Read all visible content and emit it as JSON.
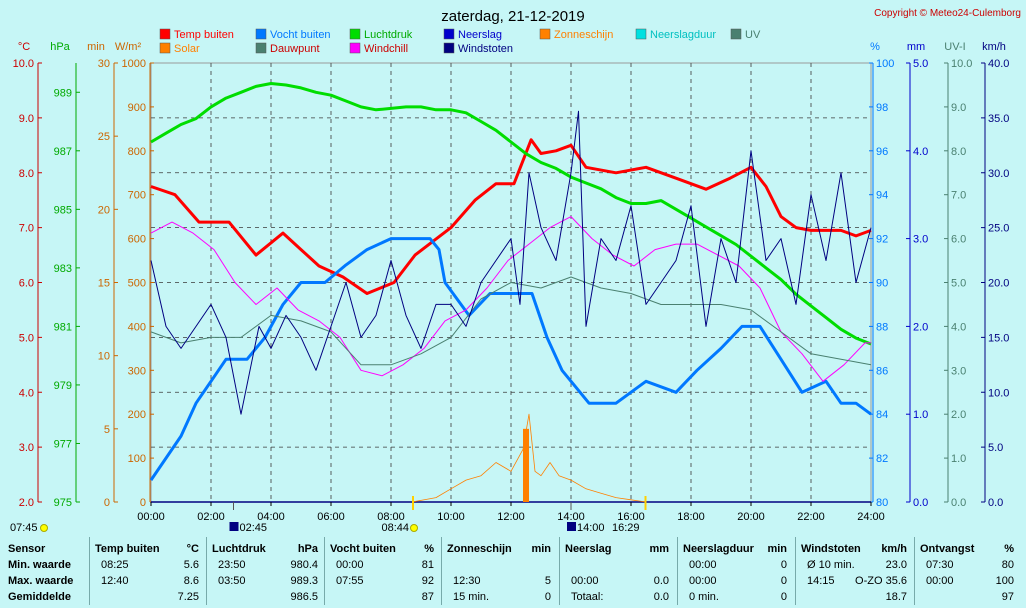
{
  "header": {
    "title": "zaterdag, 21-12-2019",
    "copyright": "Copyright © Meteo24-Culemborg"
  },
  "axis_units": {
    "celsius": "°C",
    "hpa": "hPa",
    "min": "min",
    "wm2": "W/m²",
    "percent": "%",
    "mm": "mm",
    "uvi": "UV-I",
    "kmh": "km/h"
  },
  "legend": [
    {
      "label": "Temp buiten",
      "color": "#ff0000",
      "text_color": "#ff0000"
    },
    {
      "label": "Vocht buiten",
      "color": "#0078ff",
      "text_color": "#0078ff"
    },
    {
      "label": "Luchtdruk",
      "color": "#00dd00",
      "text_color": "#00aa00"
    },
    {
      "label": "Neerslag",
      "color": "#0000cc",
      "text_color": "#0000cc"
    },
    {
      "label": "Zonneschijn",
      "color": "#ff8000",
      "text_color": "#ff8000"
    },
    {
      "label": "Neerslagduur",
      "color": "#00e0e0",
      "text_color": "#00c0c0"
    },
    {
      "label": "UV",
      "color": "#4a8070",
      "text_color": "#4a8070"
    },
    {
      "label": "Solar",
      "color": "#ff8000",
      "text_color": "#ff8000"
    },
    {
      "label": "Dauwpunt",
      "color": "#4a8070",
      "text_color": "#cc0000"
    },
    {
      "label": "Windchill",
      "color": "#ff00ff",
      "text_color": "#cc0000"
    },
    {
      "label": "Windstoten",
      "color": "#000080",
      "text_color": "#000080"
    }
  ],
  "sun_events": [
    {
      "time": "07:45",
      "type": "sunrise"
    },
    {
      "time": "02:45",
      "type": "moonset"
    },
    {
      "time": "08:44",
      "type": "sun-up"
    },
    {
      "time": "14:00",
      "type": "moonrise"
    },
    {
      "time": "16:29",
      "type": "sunset"
    }
  ],
  "chart_data": {
    "type": "line",
    "title": "zaterdag, 21-12-2019",
    "x_ticks": [
      "00:00",
      "02:00",
      "04:00",
      "06:00",
      "08:00",
      "10:00",
      "12:00",
      "14:00",
      "16:00",
      "18:00",
      "20:00",
      "22:00",
      "24:00"
    ],
    "axes": {
      "temp_c": {
        "ticks": [
          "2.0",
          "3.0",
          "4.0",
          "5.0",
          "6.0",
          "7.0",
          "8.0",
          "9.0",
          "10.0"
        ],
        "range": [
          2,
          10
        ]
      },
      "pressure_hpa": {
        "ticks": [
          "975",
          "977",
          "979",
          "981",
          "983",
          "985",
          "987",
          "989"
        ],
        "range": [
          975,
          990
        ]
      },
      "minutes": {
        "ticks": [
          "0",
          "5",
          "10",
          "15",
          "20",
          "25",
          "30"
        ],
        "range": [
          0,
          30
        ]
      },
      "solar_wm2": {
        "ticks": [
          "0",
          "100",
          "200",
          "300",
          "400",
          "500",
          "600",
          "700",
          "800",
          "900",
          "1000"
        ],
        "range": [
          0,
          1000
        ]
      },
      "humidity_pct": {
        "ticks": [
          "80",
          "82",
          "84",
          "86",
          "88",
          "90",
          "92",
          "94",
          "96",
          "98",
          "100"
        ],
        "range": [
          80,
          100
        ]
      },
      "rain_mm": {
        "ticks": [
          "0.0",
          "1.0",
          "2.0",
          "3.0",
          "4.0",
          "5.0"
        ],
        "range": [
          0,
          5
        ]
      },
      "uv_index": {
        "ticks": [
          "0.0",
          "1.0",
          "2.0",
          "3.0",
          "4.0",
          "5.0",
          "6.0",
          "7.0",
          "8.0",
          "9.0",
          "10.0"
        ],
        "range": [
          0,
          10
        ]
      },
      "wind_kmh": {
        "ticks": [
          "0.0",
          "5.0",
          "10.0",
          "15.0",
          "20.0",
          "25.0",
          "30.0",
          "35.0",
          "40.0"
        ],
        "range": [
          0,
          40
        ]
      }
    },
    "series": [
      {
        "name": "Temp buiten",
        "axis": "temp_c",
        "color": "#ff0000",
        "x": [
          0,
          0.8,
          1.6,
          2.6,
          3.5,
          4.4,
          5.0,
          5.6,
          6.4,
          7.2,
          8.1,
          8.8,
          9.4,
          10.0,
          10.8,
          11.5,
          12.1,
          12.67,
          13.0,
          13.5,
          14.0,
          14.5,
          15.5,
          16.5,
          17.5,
          18.5,
          19.3,
          20.0,
          20.5,
          21.0,
          21.5,
          22.0,
          23.0,
          23.5,
          24.0
        ],
        "y": [
          7.75,
          7.6,
          7.1,
          7.1,
          6.5,
          6.9,
          6.6,
          6.3,
          6.1,
          5.8,
          6.0,
          6.5,
          6.75,
          7.0,
          7.5,
          7.8,
          7.8,
          8.6,
          8.35,
          8.4,
          8.5,
          8.1,
          8.0,
          8.1,
          7.9,
          7.7,
          7.9,
          8.1,
          7.75,
          7.2,
          7.0,
          6.95,
          6.95,
          6.85,
          6.95
        ]
      },
      {
        "name": "Vocht buiten",
        "axis": "humidity_pct",
        "color": "#0078ff",
        "x": [
          0,
          0.5,
          1.0,
          1.5,
          2.0,
          2.5,
          3.2,
          3.8,
          4.4,
          5.0,
          5.8,
          6.5,
          7.2,
          8.0,
          8.6,
          9.3,
          9.6,
          9.8,
          10.6,
          11.3,
          12.0,
          12.7,
          13.2,
          13.7,
          14.6,
          15.5,
          16.5,
          17.5,
          18.2,
          19.0,
          19.7,
          20.3,
          21.0,
          21.7,
          22.5,
          23.0,
          23.5,
          24.0
        ],
        "y": [
          81,
          82,
          83,
          84.5,
          85.5,
          86.5,
          86.5,
          87.5,
          89,
          90,
          90,
          90.8,
          91.5,
          92,
          92,
          92,
          91.5,
          90,
          88.5,
          89.5,
          89.5,
          89.5,
          87.5,
          86,
          84.5,
          84.5,
          85.5,
          85,
          86,
          87,
          88,
          88,
          86.5,
          85,
          85.5,
          84.5,
          84.5,
          84
        ]
      },
      {
        "name": "Luchtdruk",
        "axis": "pressure_hpa",
        "color": "#00dd00",
        "x": [
          0,
          0.5,
          1.0,
          1.5,
          2.0,
          2.5,
          3.0,
          3.5,
          4.0,
          4.5,
          5.0,
          5.5,
          6.0,
          6.5,
          7.0,
          7.5,
          8.0,
          8.5,
          9.0,
          9.5,
          10.0,
          10.5,
          11.0,
          11.5,
          12.0,
          12.5,
          13.0,
          13.5,
          14.0,
          14.5,
          15.0,
          15.5,
          16.0,
          16.5,
          17.0,
          17.5,
          18.0,
          18.5,
          19.0,
          19.5,
          20.0,
          20.5,
          21.0,
          21.5,
          22.0,
          22.5,
          23.0,
          23.5,
          24.0
        ],
        "y": [
          987.3,
          987.6,
          987.9,
          988.1,
          988.5,
          988.8,
          989.0,
          989.2,
          989.3,
          989.25,
          989.15,
          989.0,
          988.9,
          988.7,
          988.5,
          988.4,
          988.45,
          988.5,
          988.5,
          988.4,
          988.4,
          988.3,
          988.0,
          987.7,
          987.3,
          986.9,
          986.6,
          986.4,
          986.1,
          985.9,
          985.7,
          985.4,
          985.2,
          985.2,
          985.3,
          985.0,
          984.7,
          984.4,
          984.1,
          983.8,
          983.4,
          983.0,
          982.6,
          982.1,
          981.7,
          981.3,
          980.9,
          980.6,
          980.4
        ]
      },
      {
        "name": "Windchill",
        "axis": "temp_c",
        "color": "#ff00ff",
        "x": [
          0,
          0.7,
          1.4,
          2.1,
          2.8,
          3.5,
          4.2,
          4.9,
          5.6,
          6.3,
          7.0,
          7.7,
          8.4,
          9.1,
          9.8,
          10.5,
          11.2,
          11.9,
          12.6,
          13.3,
          14.0,
          14.7,
          15.4,
          16.1,
          16.8,
          17.5,
          18.2,
          18.9,
          19.6,
          20.3,
          21.0,
          21.7,
          22.4,
          23.1,
          23.8,
          24.0
        ],
        "y": [
          6.9,
          7.1,
          6.9,
          6.6,
          6.0,
          5.6,
          5.9,
          5.5,
          5.3,
          5.0,
          4.4,
          4.3,
          4.5,
          4.8,
          5.3,
          5.5,
          5.9,
          6.4,
          6.7,
          7.0,
          7.2,
          6.8,
          6.5,
          6.3,
          6.6,
          6.7,
          6.7,
          6.5,
          6.3,
          5.9,
          5.1,
          4.7,
          4.2,
          4.5,
          4.9,
          4.9
        ]
      },
      {
        "name": "Dauwpunt",
        "axis": "temp_c",
        "color": "#4a8070",
        "x": [
          0,
          1,
          2,
          3,
          4,
          5,
          6,
          7,
          8,
          9,
          10,
          11,
          12,
          13,
          14,
          15,
          16,
          17,
          18,
          19,
          20,
          21,
          22,
          23,
          24
        ],
        "y": [
          5.1,
          4.9,
          5.0,
          5.0,
          5.4,
          5.3,
          5.1,
          4.5,
          4.5,
          4.7,
          5.0,
          5.7,
          6.0,
          5.9,
          6.1,
          5.9,
          5.8,
          5.6,
          5.6,
          5.6,
          5.5,
          5.1,
          4.7,
          4.6,
          4.5
        ]
      },
      {
        "name": "Windstoten",
        "axis": "wind_kmh",
        "color": "#000080",
        "x": [
          0,
          0.5,
          1.0,
          1.5,
          2.0,
          2.5,
          3.0,
          3.3,
          3.6,
          4.0,
          4.5,
          5.0,
          5.5,
          6.0,
          6.5,
          7.0,
          7.5,
          8.0,
          8.5,
          9.0,
          9.5,
          10.0,
          10.5,
          11.0,
          11.5,
          12.0,
          12.3,
          12.6,
          13.0,
          13.5,
          14.0,
          14.25,
          14.5,
          15.0,
          15.5,
          16.0,
          16.5,
          17.0,
          17.5,
          18.0,
          18.5,
          19.0,
          19.5,
          20.0,
          20.5,
          21.0,
          21.5,
          22.0,
          22.5,
          23.0,
          23.5,
          24.0
        ],
        "y": [
          22,
          16,
          14,
          16,
          18,
          15,
          8,
          12,
          16,
          14,
          17,
          15,
          12,
          16,
          20,
          15,
          17,
          22,
          17,
          14,
          18,
          18,
          16,
          20,
          22,
          24,
          18,
          30,
          25,
          22,
          30,
          35.6,
          16,
          24,
          22,
          27,
          18,
          20,
          22,
          27,
          16,
          24,
          20,
          32,
          22,
          24,
          18,
          28,
          22,
          30,
          20,
          25
        ]
      },
      {
        "name": "Solar",
        "axis": "solar_wm2",
        "color": "#ff8000",
        "x": [
          8.7,
          9.5,
          10.0,
          10.5,
          11.0,
          11.5,
          12.0,
          12.4,
          12.6,
          12.8,
          13.0,
          13.3,
          13.6,
          14.0,
          14.5,
          15.0,
          15.5,
          16.0,
          16.5
        ],
        "y": [
          0,
          10,
          30,
          50,
          60,
          90,
          70,
          120,
          200,
          70,
          60,
          90,
          60,
          50,
          30,
          20,
          10,
          5,
          0
        ]
      },
      {
        "name": "Zonneschijn",
        "axis": "minutes",
        "color": "#ff8000",
        "x": [
          12.5
        ],
        "y": [
          5
        ]
      }
    ]
  },
  "footer": {
    "columns": [
      {
        "head": "Sensor",
        "rows": [
          "Min. waarde",
          "Max. waarde",
          "Gemiddelde"
        ]
      },
      {
        "head": "Temp buiten",
        "unit": "°C",
        "rows": [
          [
            "08:25",
            "5.6"
          ],
          [
            "12:40",
            "8.6"
          ],
          [
            "",
            "7.25"
          ]
        ]
      },
      {
        "head": "Luchtdruk",
        "unit": "hPa",
        "rows": [
          [
            "23:50",
            "980.4"
          ],
          [
            "03:50",
            "989.3"
          ],
          [
            "",
            "986.5"
          ]
        ]
      },
      {
        "head": "Vocht buiten",
        "unit": "%",
        "rows": [
          [
            "00:00",
            "81"
          ],
          [
            "07:55",
            "92"
          ],
          [
            "",
            "87"
          ]
        ]
      },
      {
        "head": "Zonneschijn",
        "unit": "min",
        "rows": [
          [
            "",
            ""
          ],
          [
            "12:30",
            "5"
          ],
          [
            "15 min.",
            "0"
          ]
        ]
      },
      {
        "head": "Neerslag",
        "unit": "mm",
        "rows": [
          [
            "",
            ""
          ],
          [
            "00:00",
            "0.0"
          ],
          [
            "Totaal:",
            "0.0"
          ]
        ]
      },
      {
        "head": "Neerslagduur",
        "unit": "min",
        "rows": [
          [
            "00:00",
            "0"
          ],
          [
            "00:00",
            "0"
          ],
          [
            "0 min.",
            "0"
          ]
        ]
      },
      {
        "head": "Windstoten",
        "unit": "km/h",
        "rows": [
          [
            "Ø 10 min.",
            "23.0"
          ],
          [
            "14:15",
            "O-ZO 35.6"
          ],
          [
            "",
            "18.7"
          ]
        ]
      },
      {
        "head": "Ontvangst",
        "unit": "%",
        "rows": [
          [
            "07:30",
            "80"
          ],
          [
            "00:00",
            "100"
          ],
          [
            "",
            "97"
          ]
        ]
      }
    ]
  }
}
